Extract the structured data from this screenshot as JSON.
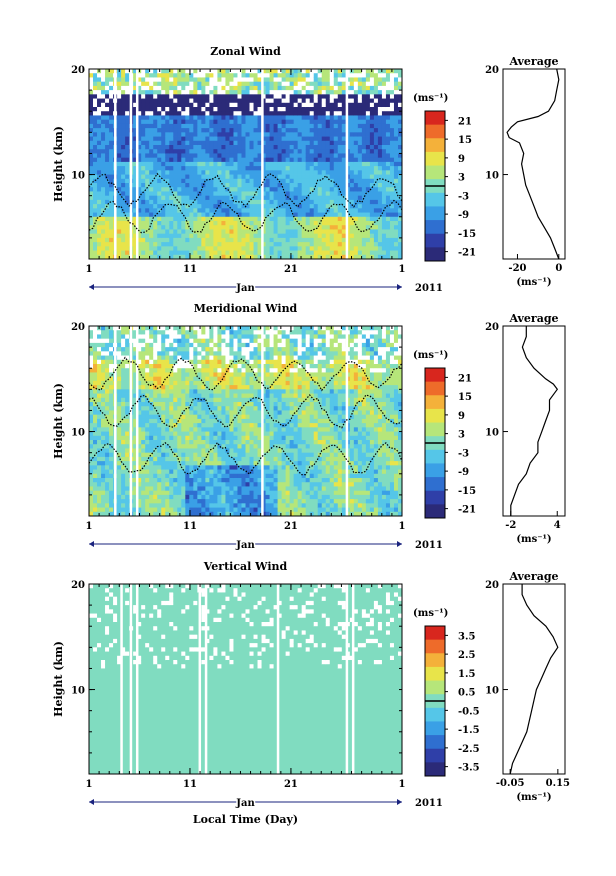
{
  "figure": {
    "month_label": "Jan",
    "year_label": "2011",
    "xlabel": "Local Time (Day)"
  },
  "chart_data": [
    {
      "type": "heatmap",
      "title": "Zonal Wind",
      "ylabel": "Height (km)",
      "ylim": [
        2,
        20
      ],
      "y_ticks": [
        "20",
        "10"
      ],
      "x_ticks": [
        "1",
        "11",
        "21",
        "1"
      ],
      "colorbar": {
        "unit": "(ms⁻¹)",
        "ticks": [
          "21",
          "15",
          "9",
          "3",
          "-3",
          "-9",
          "-15",
          "-21"
        ],
        "range": [
          -24,
          24
        ]
      },
      "profile": {
        "title": "Average",
        "unit": "(ms⁻¹)",
        "x_ticks": [
          "-20",
          "0"
        ],
        "xlim": [
          -27,
          3
        ],
        "y_ticks": [
          "20",
          "10"
        ],
        "height": [
          2,
          3,
          4,
          5,
          6,
          7,
          8,
          9,
          10,
          11,
          12,
          13,
          13.5,
          14,
          14.5,
          15,
          15.5,
          16,
          17,
          18,
          19,
          20
        ],
        "values": [
          0,
          -2,
          -4,
          -7,
          -10,
          -12,
          -14,
          -16,
          -17,
          -18,
          -17,
          -19,
          -24,
          -25,
          -23,
          -20,
          -10,
          -5,
          -2,
          -1,
          0,
          -1
        ]
      }
    },
    {
      "type": "heatmap",
      "title": "Meridional Wind",
      "ylabel": "Height (km)",
      "ylim": [
        2,
        20
      ],
      "y_ticks": [
        "20",
        "10"
      ],
      "x_ticks": [
        "1",
        "11",
        "21",
        "1"
      ],
      "colorbar": {
        "unit": "(ms⁻¹)",
        "ticks": [
          "21",
          "15",
          "9",
          "3",
          "-3",
          "-9",
          "-15",
          "-21"
        ],
        "range": [
          -24,
          24
        ]
      },
      "profile": {
        "title": "Average",
        "unit": "(ms⁻¹)",
        "x_ticks": [
          "-2",
          "4"
        ],
        "xlim": [
          -3,
          5
        ],
        "y_ticks": [
          "20",
          "10"
        ],
        "height": [
          2,
          3,
          4,
          5,
          6,
          7,
          8,
          9,
          10,
          11,
          12,
          13,
          14,
          14.5,
          15,
          16,
          17,
          18,
          19,
          20
        ],
        "values": [
          -2,
          -2,
          -1.5,
          -1,
          0,
          0.5,
          1.5,
          1.5,
          2,
          2.5,
          3,
          3,
          4,
          3.5,
          2.5,
          1,
          0,
          -0.5,
          0,
          0
        ]
      }
    },
    {
      "type": "heatmap",
      "title": "Vertical Wind",
      "ylabel": "Height (km)",
      "ylim": [
        2,
        20
      ],
      "y_ticks": [
        "20",
        "10"
      ],
      "x_ticks": [
        "1",
        "11",
        "21",
        "1"
      ],
      "colorbar": {
        "unit": "(ms⁻¹)",
        "ticks": [
          "3.5",
          "2.5",
          "1.5",
          "0.5",
          "-0.5",
          "-1.5",
          "-2.5",
          "-3.5"
        ],
        "range": [
          -4,
          4
        ]
      },
      "profile": {
        "title": "Average",
        "unit": "(ms⁻¹)",
        "x_ticks": [
          "-0.05",
          "0.15"
        ],
        "xlim": [
          -0.08,
          0.18
        ],
        "y_ticks": [
          "20",
          "10"
        ],
        "height": [
          2,
          3,
          4,
          5,
          6,
          7,
          8,
          9,
          10,
          11,
          12,
          13,
          14,
          15,
          16,
          17,
          18,
          19,
          20
        ],
        "values": [
          -0.05,
          -0.04,
          -0.02,
          0,
          0.02,
          0.03,
          0.04,
          0.05,
          0.06,
          0.08,
          0.1,
          0.12,
          0.15,
          0.13,
          0.1,
          0.05,
          0.02,
          0,
          0
        ]
      }
    }
  ],
  "palette": [
    "#2b2a78",
    "#2f3fa8",
    "#2f6fd0",
    "#3aa0e6",
    "#55c6e8",
    "#80dcc0",
    "#b6e67a",
    "#e8e44a",
    "#f4b13a",
    "#ee6b2a",
    "#d8261e"
  ]
}
